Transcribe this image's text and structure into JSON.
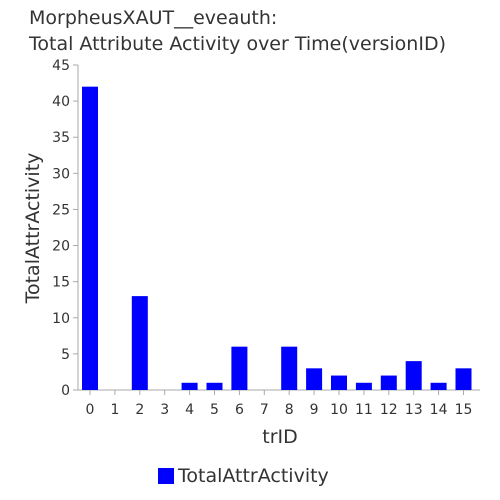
{
  "chart_data": {
    "type": "bar",
    "title": "MorpheusXAUT__eveauth:",
    "subtitle": "Total Attribute Activity over Time(versionID)",
    "xlabel": "trID",
    "ylabel": "TotalAttrActivity",
    "categories": [
      "0",
      "1",
      "2",
      "3",
      "4",
      "5",
      "6",
      "7",
      "8",
      "9",
      "10",
      "11",
      "12",
      "13",
      "14",
      "15"
    ],
    "series": [
      {
        "name": "TotalAttrActivity",
        "values": [
          42,
          0,
          13,
          0,
          1,
          1,
          6,
          0,
          6,
          3,
          2,
          1,
          2,
          4,
          1,
          3
        ]
      }
    ],
    "ylim": [
      0,
      45
    ],
    "yticks": [
      0,
      5,
      10,
      15,
      20,
      25,
      30,
      35,
      40,
      45
    ],
    "grid": false,
    "legend": "bottom",
    "colors": {
      "bar": "#0000ff",
      "axis": "#aaaaaa",
      "text": "#333333"
    }
  }
}
